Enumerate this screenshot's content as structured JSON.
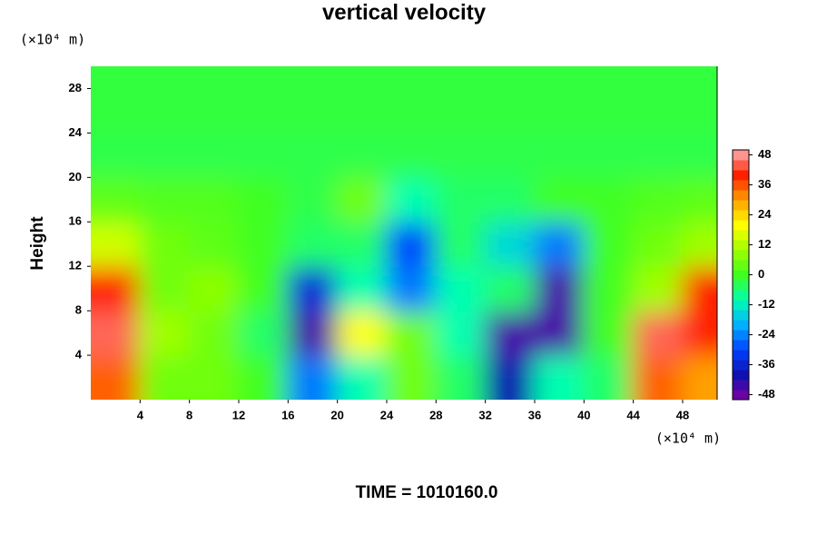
{
  "chart_data": {
    "type": "contour",
    "title": "vertical velocity",
    "y_label": "Height",
    "y_unit": "(×10⁴ m)",
    "x_unit": "(×10⁴ m)",
    "footer": "TIME = 1010160.0",
    "x": [
      2,
      6,
      10,
      14,
      18,
      22,
      26,
      30,
      34,
      38,
      42,
      46,
      50
    ],
    "y": [
      2,
      6,
      10,
      14,
      18,
      22,
      26
    ],
    "z": [
      [
        35,
        5,
        5,
        0,
        -25,
        -10,
        5,
        -5,
        -40,
        -10,
        -5,
        35,
        30
      ],
      [
        45,
        10,
        5,
        -5,
        -45,
        20,
        5,
        -10,
        -45,
        -45,
        0,
        45,
        40
      ],
      [
        40,
        5,
        8,
        0,
        -35,
        -10,
        -25,
        -10,
        -5,
        -45,
        0,
        10,
        40
      ],
      [
        15,
        5,
        3,
        0,
        -5,
        -5,
        -30,
        -5,
        -15,
        -25,
        0,
        5,
        10
      ],
      [
        3,
        2,
        2,
        0,
        -3,
        5,
        -10,
        -5,
        -5,
        0,
        0,
        2,
        3
      ],
      [
        -3,
        -3,
        -3,
        -3,
        -3,
        -3,
        -3,
        -3,
        -3,
        -3,
        -3,
        -3,
        -3
      ],
      [
        -2,
        -2,
        -2,
        -2,
        -2,
        -2,
        -2,
        -2,
        -2,
        -2,
        -2,
        -2,
        -2
      ]
    ],
    "xlim": [
      0,
      50.8
    ],
    "ylim": [
      0,
      30
    ],
    "xticks": [
      4,
      8,
      12,
      16,
      20,
      24,
      28,
      32,
      36,
      40,
      44,
      48
    ],
    "yticks": [
      4,
      8,
      12,
      16,
      20,
      24,
      28
    ],
    "clim": [
      -50,
      50
    ],
    "cticks": [
      48,
      36,
      24,
      12,
      0,
      -12,
      -24,
      -36,
      -48
    ],
    "colorscale": [
      "#7f00a0",
      "#1010b0",
      "#0040ff",
      "#00b0ff",
      "#00ffb0",
      "#40ff20",
      "#a0ff00",
      "#ffff00",
      "#ffa000",
      "#ff2000",
      "#ffb0b0"
    ]
  }
}
